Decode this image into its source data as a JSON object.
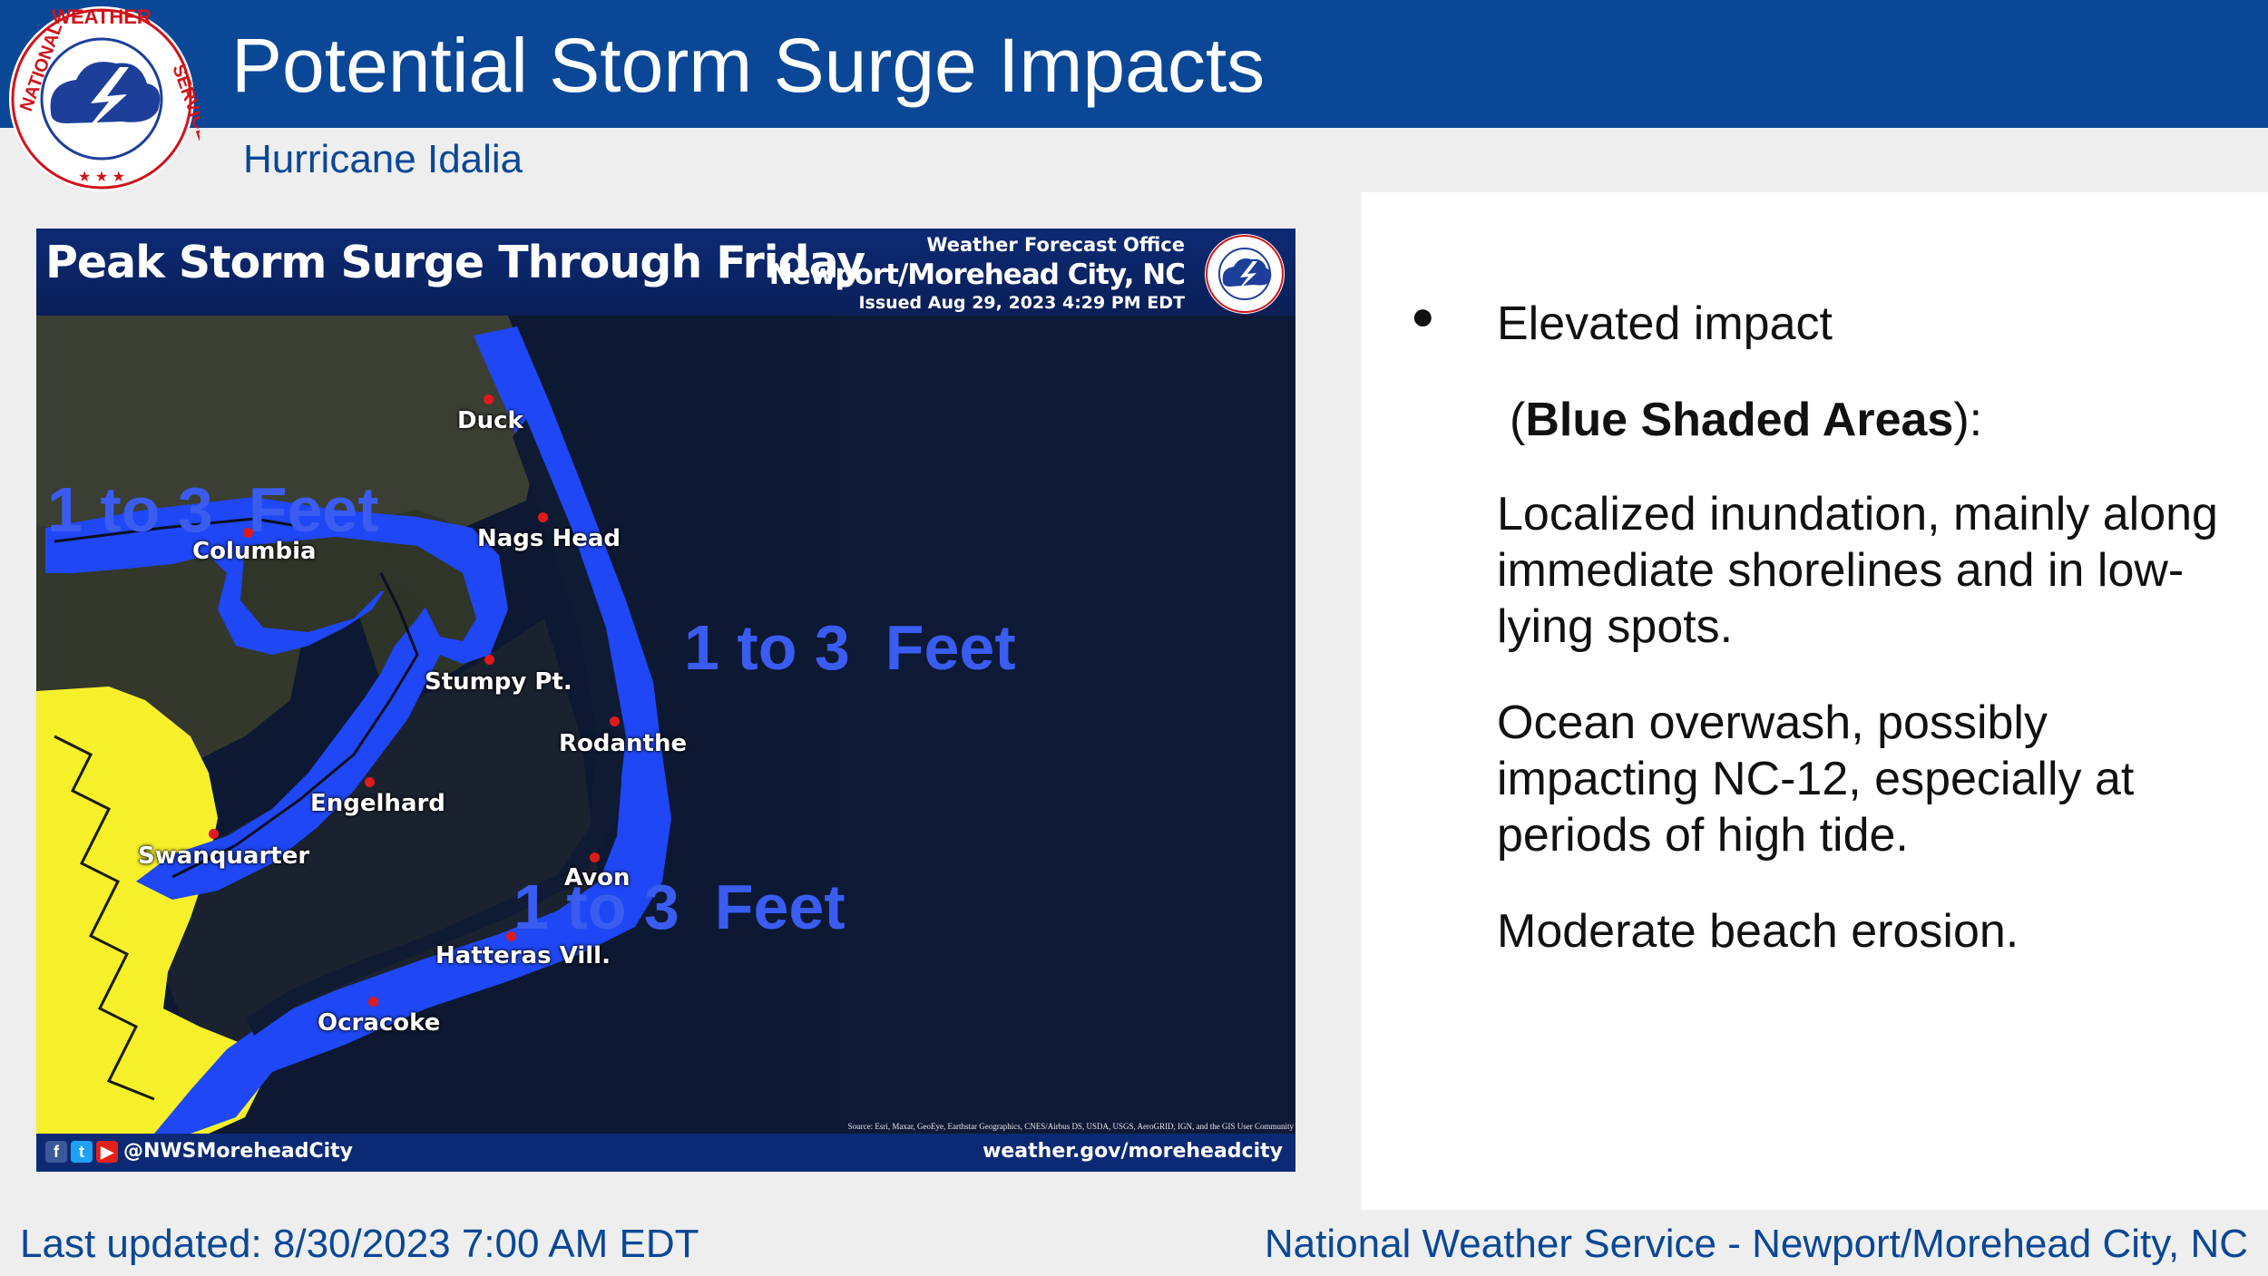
{
  "slide": {
    "title": "Potential Storm Surge Impacts",
    "subtitle": "Hurricane Idalia",
    "logo_icon": "nws-logo-icon",
    "logo_text": "NATIONAL WEATHER SERVICE"
  },
  "map": {
    "title": "Peak Storm Surge Through Friday",
    "wfo_label": "Weather Forecast Office",
    "office": "Newport/Morehead City, NC",
    "issued": "Issued Aug 29, 2023 4:29 PM EDT",
    "source": "Source: Esri, Maxar, GeoEye, Earthstar Geographics, CNES/Airbus DS, USDA, USGS, AeroGRID, IGN, and the GIS User Community",
    "handle": "@NWSMoreheadCity",
    "website": "weather.gov/moreheadcity",
    "surge_labels": [
      "1 to 3  Feet",
      "1 to 3  Feet",
      "1 to 3  Feet"
    ],
    "cities": [
      "Duck",
      "Columbia",
      "Nags Head",
      "Stumpy Pt.",
      "Rodanthe",
      "Engelhard",
      "Swanquarter",
      "Avon",
      "Hatteras Vill.",
      "Ocracoke"
    ],
    "colors": {
      "surge_blue": "#1f47f5",
      "yellow_zone": "#f5f02a",
      "label_blue": "#3a5cf0",
      "header": "#0a4796",
      "city_dot": "#e01a1a"
    }
  },
  "impacts": {
    "bullet": "●",
    "heading": "Elevated impact",
    "paren_open": "(",
    "emphasis": "Blue Shaded Areas",
    "paren_close": "):",
    "items": [
      "Localized inundation, mainly along immediate shorelines and in low-lying spots.",
      "Ocean overwash, possibly impacting NC-12, especially at periods of high tide.",
      "Moderate beach erosion."
    ]
  },
  "footer": {
    "last_updated": "Last updated: 8/30/2023 7:00 AM EDT",
    "office": "National Weather Service - Newport/Morehead City, NC"
  }
}
